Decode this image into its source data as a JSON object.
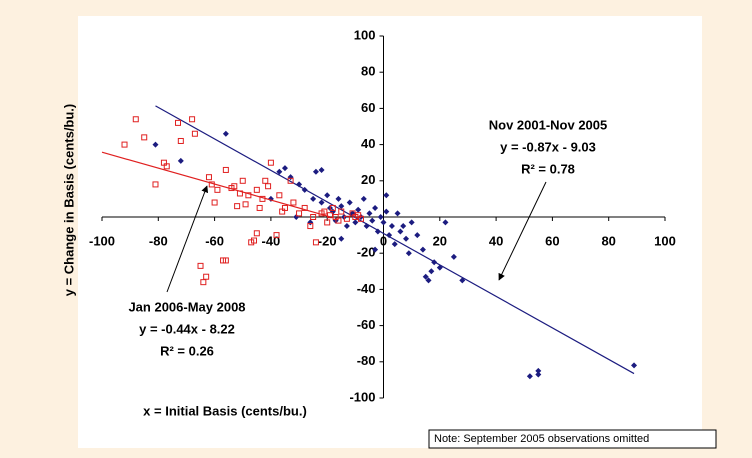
{
  "chart_data": {
    "type": "scatter",
    "x_label": "x = Initial Basis (cents/bu.)",
    "y_label": "y = Change in Basis (cents/bu.)",
    "note": "Note: September 2005 observations omitted",
    "xlim": [
      -100,
      100
    ],
    "ylim": [
      -100,
      100
    ],
    "xticks": [
      -100,
      -80,
      -60,
      -40,
      -20,
      0,
      20,
      40,
      60,
      80,
      100
    ],
    "yticks": [
      -100,
      -80,
      -60,
      -40,
      -20,
      20,
      40,
      60,
      80,
      100
    ],
    "series": [
      {
        "color": "#1c1c80",
        "marker": "diamond",
        "annotation": [
          "Nov 2001-Nov 2005",
          "y = -0.87x - 9.03",
          "R² = 0.78"
        ],
        "fit_x": [
          -81,
          89
        ],
        "fit_y": [
          61.4,
          -86.5
        ],
        "x": [
          -81,
          -72,
          -56,
          -37,
          -35,
          -33,
          -30,
          -28,
          -25,
          -24,
          -22,
          -22,
          -20,
          -19,
          -18,
          -17,
          -16,
          -15,
          -14,
          -13,
          -12,
          -11,
          -10,
          -9,
          -8,
          -7,
          -6,
          -5,
          -4,
          -3,
          -2,
          -1,
          0,
          1,
          1,
          2,
          3,
          4,
          5,
          6,
          7,
          8,
          9,
          10,
          12,
          14,
          15,
          16,
          17,
          18,
          20,
          22,
          25,
          28,
          52,
          55,
          55,
          89,
          -40,
          -26,
          -31,
          -15,
          -3
        ],
        "values": [
          40,
          31,
          46,
          25,
          27,
          22,
          18,
          15,
          10,
          25,
          26,
          8,
          12,
          5,
          3,
          -2,
          10,
          6,
          0,
          -5,
          8,
          2,
          -3,
          4,
          0,
          10,
          -5,
          2,
          -2,
          5,
          -8,
          0,
          -3,
          12,
          3,
          -10,
          -5,
          -15,
          2,
          -8,
          -5,
          -12,
          -20,
          -3,
          -10,
          -18,
          -33,
          -35,
          -30,
          -25,
          -28,
          -3,
          -22,
          -35,
          -88,
          -85,
          -87,
          -82,
          10,
          -3,
          0,
          -12,
          -18
        ]
      },
      {
        "color": "#e02020",
        "marker": "square-open",
        "annotation": [
          "Jan 2006-May 2008",
          "y = -0.44x - 8.22",
          "R² = 0.26"
        ],
        "fit_x": [
          -100,
          -19
        ],
        "fit_y": [
          35.8,
          0.1
        ],
        "x": [
          -92,
          -88,
          -85,
          -81,
          -78,
          -77,
          -73,
          -72,
          -68,
          -67,
          -65,
          -64,
          -63,
          -62,
          -61,
          -57,
          -56,
          -56,
          -54,
          -51,
          -50,
          -49,
          -48,
          -47,
          -46,
          -45,
          -45,
          -44,
          -43,
          -42,
          -41,
          -40,
          -38,
          -37,
          -36,
          -35,
          -33,
          -32,
          -30,
          -28,
          -26,
          -25,
          -24,
          -22,
          -21,
          -20,
          -19,
          -18,
          -17,
          -16,
          -15,
          -13,
          -11,
          -10,
          -9,
          -8,
          -52,
          -53,
          -60,
          -59
        ],
        "values": [
          40,
          54,
          44,
          18,
          30,
          28,
          52,
          42,
          54,
          46,
          -27,
          -36,
          -33,
          22,
          18,
          -24,
          -24,
          26,
          16,
          13,
          20,
          7,
          12,
          -14,
          -13,
          -9,
          15,
          5,
          10,
          20,
          17,
          30,
          -10,
          12,
          3,
          5,
          20,
          8,
          2,
          5,
          -5,
          0,
          -14,
          2,
          3,
          -3,
          1,
          5,
          0,
          -2,
          3,
          -1,
          2,
          0,
          1,
          -1,
          6,
          17,
          8,
          15
        ]
      }
    ]
  }
}
